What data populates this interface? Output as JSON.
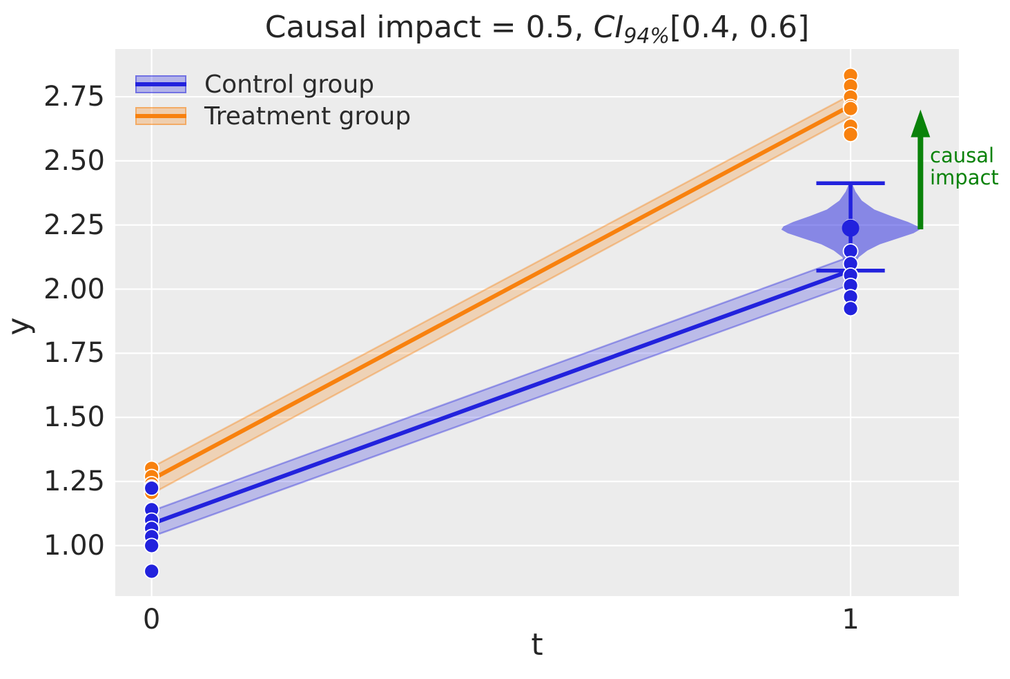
{
  "title": {
    "prefix": "Causal impact = 0.5, ",
    "ci": "CI",
    "sub": "94%",
    "suffix": "[0.4, 0.6]"
  },
  "axes": {
    "xlabel": "t",
    "ylabel": "y",
    "x_tick_labels": [
      "0",
      "1"
    ],
    "y_tick_labels": [
      "1.00",
      "1.25",
      "1.50",
      "1.75",
      "2.00",
      "2.25",
      "2.50",
      "2.75"
    ]
  },
  "legend": {
    "items": [
      {
        "label": "Control group",
        "color": "#2222dd"
      },
      {
        "label": "Treatment group",
        "color": "#f8810e"
      }
    ]
  },
  "annotation": {
    "line1": "causal",
    "line2": "impact",
    "color": "#0a820a"
  },
  "colors": {
    "control": "#2222dd",
    "treatment": "#f8810e",
    "arrow_green": "#0a820a",
    "plot_background": "#ececec",
    "gridline": "#ffffff",
    "text": "#262626"
  },
  "chart_data": {
    "type": "line",
    "title": "Causal impact = 0.5, CI 94% [0.4, 0.6]",
    "xlabel": "t",
    "ylabel": "y",
    "grid": true,
    "legend_position": "upper left",
    "xlim": [
      -0.052,
      1.155
    ],
    "ylim": [
      0.803,
      2.936
    ],
    "x_ticks": [
      0,
      1
    ],
    "y_ticks": [
      1.0,
      1.25,
      1.5,
      1.75,
      2.0,
      2.25,
      2.5,
      2.75
    ],
    "series": [
      {
        "name": "Control group",
        "color": "#2222dd",
        "line": {
          "x": [
            0,
            1
          ],
          "y": [
            1.085,
            2.072
          ]
        },
        "band": {
          "x": [
            0,
            1
          ],
          "lower": [
            1.035,
            2.017
          ],
          "upper": [
            1.135,
            2.127
          ]
        },
        "scatter": [
          {
            "t": 0,
            "values": [
              1.224,
              1.14,
              1.099,
              1.067,
              1.035,
              1.0,
              0.9
            ]
          },
          {
            "t": 1,
            "values": [
              2.243,
              2.148,
              2.099,
              2.054,
              2.014,
              1.97,
              1.924
            ]
          }
        ]
      },
      {
        "name": "Treatment group",
        "color": "#f8810e",
        "line": {
          "x": [
            0,
            1
          ],
          "y": [
            1.258,
            2.715
          ]
        },
        "band": {
          "x": [
            0,
            1
          ],
          "lower": [
            1.202,
            2.672
          ],
          "upper": [
            1.305,
            2.757
          ]
        },
        "scatter": [
          {
            "t": 0,
            "values": [
              1.301,
              1.269,
              1.241,
              1.228,
              1.207
            ]
          },
          {
            "t": 1,
            "values": [
              2.833,
              2.792,
              2.749,
              2.712,
              2.704,
              2.635,
              2.603
            ]
          }
        ]
      }
    ],
    "counterfactual_violin": {
      "x": 1,
      "color": "#2222dd",
      "median": 2.238,
      "whisker_high": 2.413,
      "whisker_low": 2.072,
      "whisker_halfwidth": 0.049,
      "profile": [
        [
          2.413,
          0.002
        ],
        [
          2.38,
          0.007
        ],
        [
          2.345,
          0.016
        ],
        [
          2.31,
          0.034
        ],
        [
          2.285,
          0.058
        ],
        [
          2.262,
          0.082
        ],
        [
          2.245,
          0.096
        ],
        [
          2.232,
          0.099
        ],
        [
          2.218,
          0.09
        ],
        [
          2.198,
          0.068
        ],
        [
          2.175,
          0.042
        ],
        [
          2.15,
          0.024
        ],
        [
          2.125,
          0.012
        ],
        [
          2.1,
          0.006
        ],
        [
          2.08,
          0.002
        ]
      ]
    },
    "impact_arrow": {
      "x": 1.1,
      "y_from": 2.233,
      "y_to": 2.7,
      "label": "causal impact"
    }
  }
}
